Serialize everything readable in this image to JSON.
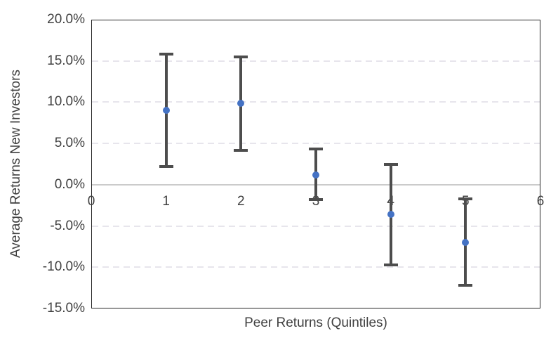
{
  "chart_data": {
    "type": "scatter",
    "subtype": "points-with-error-bars",
    "title": "",
    "xlabel": "Peer Returns (Quintiles)",
    "ylabel": "Average Returns New Investors",
    "x": [
      1,
      2,
      3,
      4,
      5
    ],
    "series": [
      {
        "name": "Average Returns New Investors",
        "values_pct": [
          9.0,
          9.9,
          1.2,
          -3.6,
          -7.0
        ],
        "error_upper_pct": [
          15.8,
          15.5,
          4.3,
          2.5,
          -1.7
        ],
        "error_lower_pct": [
          2.2,
          4.2,
          -1.8,
          -9.7,
          -12.2
        ]
      }
    ],
    "xlim": [
      0,
      6
    ],
    "ylim": [
      -15,
      20
    ],
    "x_ticks": [
      "0",
      "1",
      "2",
      "3",
      "4",
      "5",
      "6"
    ],
    "y_ticks": [
      20,
      15,
      10,
      5,
      0,
      -5,
      -10,
      -15
    ],
    "y_tick_labels": [
      "20.0%",
      "15.0%",
      "10.0%",
      "5.0%",
      "0.0%",
      "-5.0%",
      "-10.0%",
      "-15.0%"
    ],
    "grid": "horizontal-dashed-at-5pct-steps",
    "legend": "none",
    "colors": {
      "marker": "#4472c4",
      "error_bar": "#4d4d4d",
      "axis_text": "#404040",
      "plot_border": "#262626",
      "zero_line": "#cbcbcb",
      "gridline": "#e7e5ec",
      "background": "#ffffff"
    }
  }
}
